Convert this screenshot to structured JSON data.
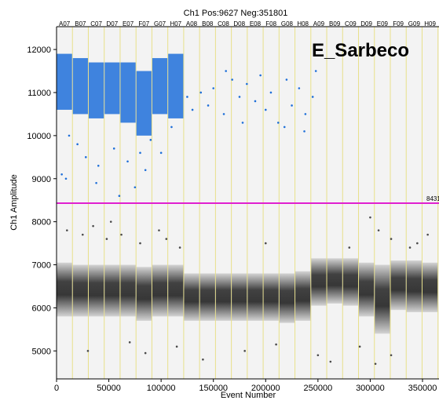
{
  "chart_data": {
    "type": "scatter",
    "title": "Ch1 Pos:9627 Neg:351801",
    "annotation": "E_Sarbeco",
    "x_label": "Event Number",
    "y_label": "Ch1 Amplitude",
    "xlim": [
      0,
      365000
    ],
    "ylim": [
      4350,
      12530
    ],
    "xticks": [
      0,
      50000,
      100000,
      150000,
      200000,
      250000,
      300000,
      350000
    ],
    "yticks": [
      5000,
      6000,
      7000,
      8000,
      9000,
      10000,
      11000,
      12000
    ],
    "wells": [
      "A07",
      "B07",
      "C07",
      "D07",
      "E07",
      "F07",
      "G07",
      "H07",
      "A08",
      "B08",
      "C08",
      "D08",
      "E08",
      "F08",
      "G08",
      "H08",
      "A09",
      "B09",
      "C09",
      "D09",
      "E09",
      "F09",
      "G09",
      "H09"
    ],
    "well_boundaries": [
      15200,
      30400,
      45600,
      60800,
      76000,
      91200,
      106400,
      121600,
      136800,
      152000,
      167200,
      182400,
      197600,
      212800,
      228000,
      243200,
      258400,
      273600,
      288800,
      304000,
      319200,
      334400,
      349600,
      364800
    ],
    "well_line_color": "#e8e08a",
    "threshold": 8431,
    "threshold_label": "8431",
    "threshold_color": "#e020d0",
    "positive_bands": {
      "color": "#1e6fd9",
      "low": [
        10600,
        10500,
        10400,
        10500,
        10300,
        10000,
        10500,
        10400
      ],
      "high": [
        11900,
        11800,
        11700,
        11700,
        11700,
        11500,
        11800,
        11900
      ]
    },
    "negative_bands": {
      "color": "#222222",
      "low": [
        5800,
        5800,
        5800,
        5800,
        5800,
        5700,
        5800,
        5800,
        5700,
        5700,
        5700,
        5700,
        5700,
        5700,
        5650,
        5700,
        6050,
        6100,
        6050,
        5800,
        5400,
        5950,
        5900,
        5900,
        5950
      ],
      "high": [
        7050,
        7000,
        7000,
        7000,
        7000,
        6950,
        7000,
        7000,
        6800,
        6800,
        6800,
        6800,
        6800,
        6800,
        6800,
        6850,
        7150,
        7150,
        7150,
        7050,
        7000,
        7100,
        7100,
        7050,
        7100
      ]
    },
    "series": [
      {
        "color": "#1e6fd9",
        "x": [
          5000,
          9000,
          12000,
          20000,
          28000,
          38000,
          40000,
          55000,
          60000,
          68000,
          75000,
          80000,
          85000,
          90000,
          100000,
          110000,
          125000,
          130000,
          138000,
          145000,
          150000,
          160000,
          168000,
          175000,
          182000,
          190000,
          195000,
          200000,
          205000,
          212000,
          220000,
          225000,
          232000,
          238000,
          245000,
          248000,
          162000,
          178000,
          218000,
          237000
        ],
        "y": [
          9100,
          9000,
          10000,
          9800,
          9500,
          8900,
          9300,
          9700,
          8600,
          9400,
          8800,
          9600,
          9200,
          9900,
          9600,
          10200,
          10900,
          10600,
          11000,
          10700,
          11100,
          10500,
          11300,
          10900,
          11200,
          10800,
          11400,
          10600,
          11000,
          10300,
          11300,
          10700,
          11100,
          10500,
          10900,
          11500,
          11500,
          10300,
          10200,
          10100
        ]
      },
      {
        "color": "#4a4a4a",
        "x": [
          10000,
          25000,
          35000,
          48000,
          52000,
          62000,
          80000,
          98000,
          105000,
          118000,
          30000,
          70000,
          85000,
          115000,
          140000,
          180000,
          210000,
          250000,
          262000,
          290000,
          305000,
          320000,
          300000,
          308000,
          320000,
          338000,
          345000,
          355000,
          280000,
          200000
        ],
        "y": [
          7800,
          7700,
          7900,
          7600,
          8000,
          7700,
          7500,
          7800,
          7600,
          7400,
          5000,
          5200,
          4950,
          5100,
          4800,
          5000,
          5150,
          4900,
          4750,
          5100,
          4700,
          4900,
          8100,
          7800,
          7600,
          7400,
          7500,
          7700,
          7400,
          7500
        ]
      }
    ]
  }
}
